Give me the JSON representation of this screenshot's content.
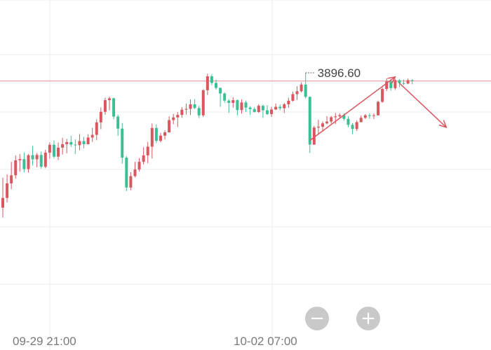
{
  "colors": {
    "up": "#d9575f",
    "down": "#3dbf95",
    "grid": "#ececec",
    "price_line": "#e58a90",
    "arrow": "#d9575f",
    "annotation": "#444444"
  },
  "chart_data": {
    "type": "candlestick",
    "ylim": [
      3818,
      3904
    ],
    "grid": true,
    "current_price": 3896.6,
    "current_price_label": "3896.60",
    "reference_price": 3892.6,
    "x_ticks": [
      "09-29 21:00",
      "10-02 07:00"
    ],
    "candles": [
      {
        "o": 3831.6,
        "h": 3846.0,
        "l": 3826.9,
        "c": 3836.3
      },
      {
        "o": 3836.3,
        "h": 3847.6,
        "l": 3834.1,
        "c": 3843.3
      },
      {
        "o": 3843.3,
        "h": 3853.7,
        "l": 3840.5,
        "c": 3847.2
      },
      {
        "o": 3847.2,
        "h": 3856.8,
        "l": 3845.6,
        "c": 3854.4
      },
      {
        "o": 3854.4,
        "h": 3857.4,
        "l": 3849.0,
        "c": 3855.0
      },
      {
        "o": 3855.0,
        "h": 3858.2,
        "l": 3848.6,
        "c": 3850.2
      },
      {
        "o": 3850.2,
        "h": 3857.4,
        "l": 3848.5,
        "c": 3856.9
      },
      {
        "o": 3856.9,
        "h": 3861.3,
        "l": 3851.9,
        "c": 3854.9
      },
      {
        "o": 3854.9,
        "h": 3858.0,
        "l": 3851.1,
        "c": 3857.0
      },
      {
        "o": 3857.0,
        "h": 3858.6,
        "l": 3850.4,
        "c": 3851.3
      },
      {
        "o": 3851.3,
        "h": 3859.5,
        "l": 3850.6,
        "c": 3858.1
      },
      {
        "o": 3858.1,
        "h": 3863.1,
        "l": 3855.2,
        "c": 3861.9
      },
      {
        "o": 3861.9,
        "h": 3864.0,
        "l": 3855.3,
        "c": 3856.2
      },
      {
        "o": 3856.2,
        "h": 3863.0,
        "l": 3854.5,
        "c": 3860.5
      },
      {
        "o": 3860.5,
        "h": 3865.3,
        "l": 3857.2,
        "c": 3862.2
      },
      {
        "o": 3862.2,
        "h": 3864.7,
        "l": 3857.8,
        "c": 3863.2
      },
      {
        "o": 3863.2,
        "h": 3866.2,
        "l": 3860.9,
        "c": 3862.0
      },
      {
        "o": 3862.0,
        "h": 3864.5,
        "l": 3857.5,
        "c": 3861.7
      },
      {
        "o": 3861.7,
        "h": 3867.1,
        "l": 3859.3,
        "c": 3863.7
      },
      {
        "o": 3863.7,
        "h": 3865.7,
        "l": 3860.2,
        "c": 3862.2
      },
      {
        "o": 3862.2,
        "h": 3867.0,
        "l": 3862.0,
        "c": 3865.4
      },
      {
        "o": 3865.4,
        "h": 3870.0,
        "l": 3863.3,
        "c": 3866.7
      },
      {
        "o": 3866.7,
        "h": 3874.2,
        "l": 3864.1,
        "c": 3872.7
      },
      {
        "o": 3872.7,
        "h": 3879.9,
        "l": 3869.4,
        "c": 3877.8
      },
      {
        "o": 3877.8,
        "h": 3884.6,
        "l": 3876.4,
        "c": 3883.4
      },
      {
        "o": 3883.4,
        "h": 3885.1,
        "l": 3878.5,
        "c": 3884.3
      },
      {
        "o": 3884.3,
        "h": 3884.6,
        "l": 3874.2,
        "c": 3875.5
      },
      {
        "o": 3875.5,
        "h": 3876.4,
        "l": 3866.2,
        "c": 3869.7
      },
      {
        "o": 3869.7,
        "h": 3872.4,
        "l": 3852.8,
        "c": 3855.7
      },
      {
        "o": 3855.7,
        "h": 3856.5,
        "l": 3839.6,
        "c": 3841.3
      },
      {
        "o": 3841.3,
        "h": 3848.7,
        "l": 3840.0,
        "c": 3846.8
      },
      {
        "o": 3846.8,
        "h": 3853.7,
        "l": 3846.2,
        "c": 3850.0
      },
      {
        "o": 3850.0,
        "h": 3855.5,
        "l": 3849.0,
        "c": 3853.7
      },
      {
        "o": 3853.7,
        "h": 3860.7,
        "l": 3852.4,
        "c": 3856.8
      },
      {
        "o": 3856.8,
        "h": 3863.3,
        "l": 3853.0,
        "c": 3861.0
      },
      {
        "o": 3861.0,
        "h": 3872.2,
        "l": 3855.3,
        "c": 3870.0
      },
      {
        "o": 3870.0,
        "h": 3871.8,
        "l": 3862.7,
        "c": 3863.8
      },
      {
        "o": 3863.8,
        "h": 3867.7,
        "l": 3863.0,
        "c": 3866.3
      },
      {
        "o": 3866.3,
        "h": 3868.8,
        "l": 3864.4,
        "c": 3867.9
      },
      {
        "o": 3867.9,
        "h": 3875.6,
        "l": 3867.8,
        "c": 3873.8
      },
      {
        "o": 3873.8,
        "h": 3876.8,
        "l": 3871.8,
        "c": 3875.1
      },
      {
        "o": 3875.1,
        "h": 3877.7,
        "l": 3870.4,
        "c": 3876.3
      },
      {
        "o": 3876.3,
        "h": 3880.0,
        "l": 3874.9,
        "c": 3878.8
      },
      {
        "o": 3878.8,
        "h": 3881.7,
        "l": 3876.5,
        "c": 3879.2
      },
      {
        "o": 3879.2,
        "h": 3883.8,
        "l": 3876.2,
        "c": 3881.4
      },
      {
        "o": 3881.4,
        "h": 3883.9,
        "l": 3879.1,
        "c": 3879.6
      },
      {
        "o": 3879.6,
        "h": 3880.7,
        "l": 3874.8,
        "c": 3876.1
      },
      {
        "o": 3876.1,
        "h": 3888.7,
        "l": 3875.3,
        "c": 3888.2
      },
      {
        "o": 3888.2,
        "h": 3896.1,
        "l": 3885.9,
        "c": 3894.9
      },
      {
        "o": 3894.9,
        "h": 3895.9,
        "l": 3890.6,
        "c": 3891.7
      },
      {
        "o": 3891.7,
        "h": 3893.3,
        "l": 3888.5,
        "c": 3889.3
      },
      {
        "o": 3889.3,
        "h": 3889.5,
        "l": 3880.2,
        "c": 3886.6
      },
      {
        "o": 3886.6,
        "h": 3887.1,
        "l": 3882.2,
        "c": 3883.2
      },
      {
        "o": 3883.2,
        "h": 3883.8,
        "l": 3877.3,
        "c": 3882.1
      },
      {
        "o": 3882.1,
        "h": 3884.8,
        "l": 3879.8,
        "c": 3883.4
      },
      {
        "o": 3883.4,
        "h": 3883.8,
        "l": 3876.1,
        "c": 3878.6
      },
      {
        "o": 3878.6,
        "h": 3883.8,
        "l": 3876.9,
        "c": 3882.3
      },
      {
        "o": 3882.3,
        "h": 3883.2,
        "l": 3877.7,
        "c": 3879.8
      },
      {
        "o": 3879.8,
        "h": 3880.5,
        "l": 3876.3,
        "c": 3879.1
      },
      {
        "o": 3879.1,
        "h": 3880.0,
        "l": 3877.4,
        "c": 3877.7
      },
      {
        "o": 3877.7,
        "h": 3881.5,
        "l": 3877.2,
        "c": 3880.7
      },
      {
        "o": 3880.7,
        "h": 3881.3,
        "l": 3874.9,
        "c": 3878.5
      },
      {
        "o": 3878.5,
        "h": 3881.0,
        "l": 3876.3,
        "c": 3876.7
      },
      {
        "o": 3876.7,
        "h": 3880.1,
        "l": 3875.4,
        "c": 3878.9
      },
      {
        "o": 3878.9,
        "h": 3881.8,
        "l": 3878.6,
        "c": 3880.2
      },
      {
        "o": 3880.2,
        "h": 3881.3,
        "l": 3878.5,
        "c": 3879.5
      },
      {
        "o": 3879.5,
        "h": 3882.1,
        "l": 3877.2,
        "c": 3881.4
      },
      {
        "o": 3881.4,
        "h": 3884.6,
        "l": 3879.7,
        "c": 3883.1
      },
      {
        "o": 3883.1,
        "h": 3887.5,
        "l": 3882.7,
        "c": 3886.3
      },
      {
        "o": 3886.3,
        "h": 3890.1,
        "l": 3883.5,
        "c": 3887.7
      },
      {
        "o": 3887.7,
        "h": 3892.0,
        "l": 3887.1,
        "c": 3890.9
      },
      {
        "o": 3890.9,
        "h": 3896.6,
        "l": 3884.2,
        "c": 3885.0
      },
      {
        "o": 3885.0,
        "h": 3885.2,
        "l": 3857.9,
        "c": 3862.0
      },
      {
        "o": 3862.0,
        "h": 3871.1,
        "l": 3861.8,
        "c": 3870.2
      },
      {
        "o": 3870.2,
        "h": 3874.0,
        "l": 3866.7,
        "c": 3870.6
      },
      {
        "o": 3870.6,
        "h": 3873.1,
        "l": 3868.2,
        "c": 3872.2
      },
      {
        "o": 3872.2,
        "h": 3875.7,
        "l": 3871.8,
        "c": 3873.1
      },
      {
        "o": 3873.1,
        "h": 3875.8,
        "l": 3872.2,
        "c": 3875.2
      },
      {
        "o": 3875.2,
        "h": 3877.3,
        "l": 3871.9,
        "c": 3875.6
      },
      {
        "o": 3875.6,
        "h": 3877.1,
        "l": 3874.5,
        "c": 3876.2
      },
      {
        "o": 3876.2,
        "h": 3877.0,
        "l": 3873.5,
        "c": 3874.4
      },
      {
        "o": 3874.4,
        "h": 3875.6,
        "l": 3870.4,
        "c": 3871.5
      },
      {
        "o": 3871.5,
        "h": 3872.3,
        "l": 3867.1,
        "c": 3869.5
      },
      {
        "o": 3869.5,
        "h": 3873.6,
        "l": 3868.6,
        "c": 3872.8
      },
      {
        "o": 3872.8,
        "h": 3876.0,
        "l": 3872.7,
        "c": 3874.9
      },
      {
        "o": 3874.9,
        "h": 3876.7,
        "l": 3874.3,
        "c": 3876.1
      },
      {
        "o": 3876.1,
        "h": 3877.1,
        "l": 3874.4,
        "c": 3875.8
      },
      {
        "o": 3875.8,
        "h": 3877.1,
        "l": 3874.3,
        "c": 3876.1
      },
      {
        "o": 3876.1,
        "h": 3883.2,
        "l": 3876.0,
        "c": 3882.6
      },
      {
        "o": 3882.6,
        "h": 3889.6,
        "l": 3882.1,
        "c": 3888.8
      },
      {
        "o": 3888.8,
        "h": 3893.9,
        "l": 3887.8,
        "c": 3892.4
      },
      {
        "o": 3892.4,
        "h": 3893.5,
        "l": 3888.0,
        "c": 3889.2
      },
      {
        "o": 3889.2,
        "h": 3893.7,
        "l": 3888.3,
        "c": 3893.0
      },
      {
        "o": 3893.0,
        "h": 3893.5,
        "l": 3889.6,
        "c": 3891.6
      },
      {
        "o": 3891.6,
        "h": 3893.3,
        "l": 3890.8,
        "c": 3891.4
      },
      {
        "o": 3891.4,
        "h": 3893.8,
        "l": 3891.1,
        "c": 3893.0
      },
      {
        "o": 3893.0,
        "h": 3893.5,
        "l": 3891.0,
        "c": 3892.6
      }
    ],
    "trend_arrows": [
      {
        "from_index": 72,
        "from_price": 3864.0,
        "to_index": 92,
        "to_price": 3894.6
      },
      {
        "from_index": 93,
        "from_price": 3891.6,
        "to_index": 104,
        "to_price": 3870.3
      }
    ]
  },
  "controls": {
    "zoom_out_label": "−",
    "zoom_in_label": "+"
  }
}
